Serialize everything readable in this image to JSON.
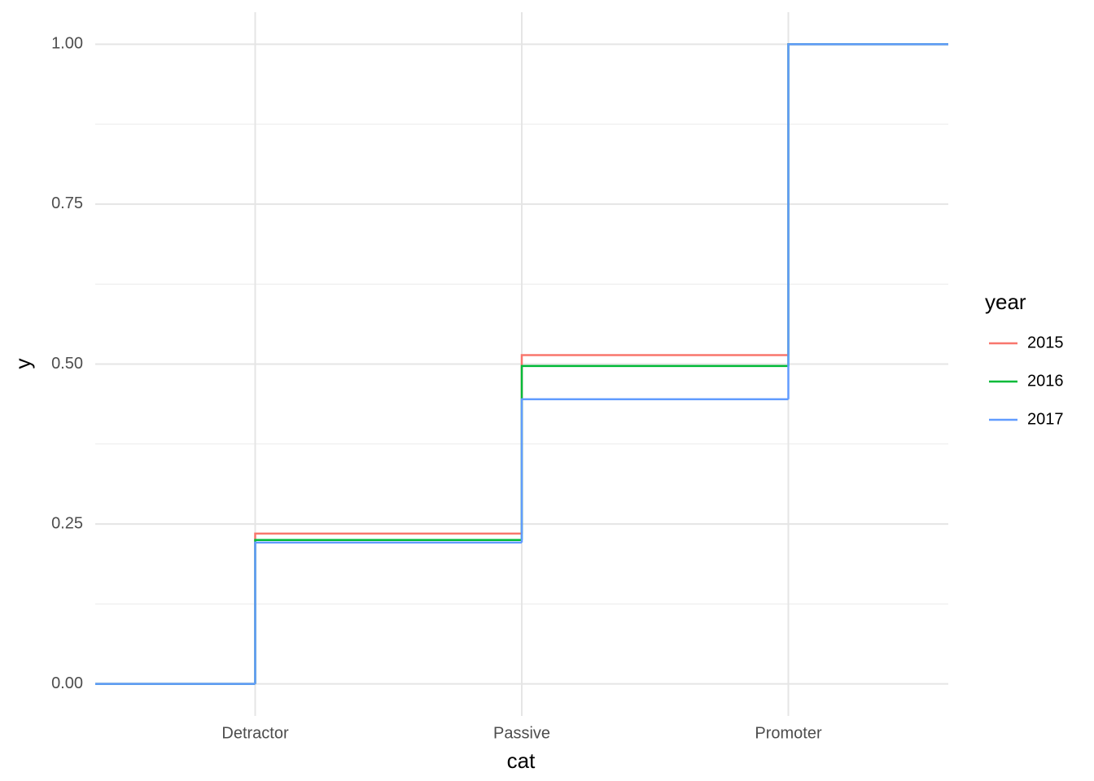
{
  "chart_data": {
    "type": "step",
    "x_label": "cat",
    "y_label": "y",
    "categories": [
      "Detractor",
      "Passive",
      "Promoter"
    ],
    "series": [
      {
        "name": "2015",
        "color": "#f8766d",
        "values": [
          0.235,
          0.514,
          1.0
        ]
      },
      {
        "name": "2016",
        "color": "#00ba38",
        "values": [
          0.225,
          0.497,
          1.0
        ]
      },
      {
        "name": "2017",
        "color": "#619cff",
        "values": [
          0.221,
          0.445,
          1.0
        ]
      }
    ],
    "ylim": [
      -0.05,
      1.05
    ],
    "yticks": [
      {
        "value": 0,
        "label": "0.00"
      },
      {
        "value": 0.25,
        "label": "0.25"
      },
      {
        "value": 0.5,
        "label": "0.50"
      },
      {
        "value": 0.75,
        "label": "0.75"
      },
      {
        "value": 1,
        "label": "1.00"
      }
    ],
    "grid": true,
    "legend_title": "year",
    "legend": "right"
  }
}
